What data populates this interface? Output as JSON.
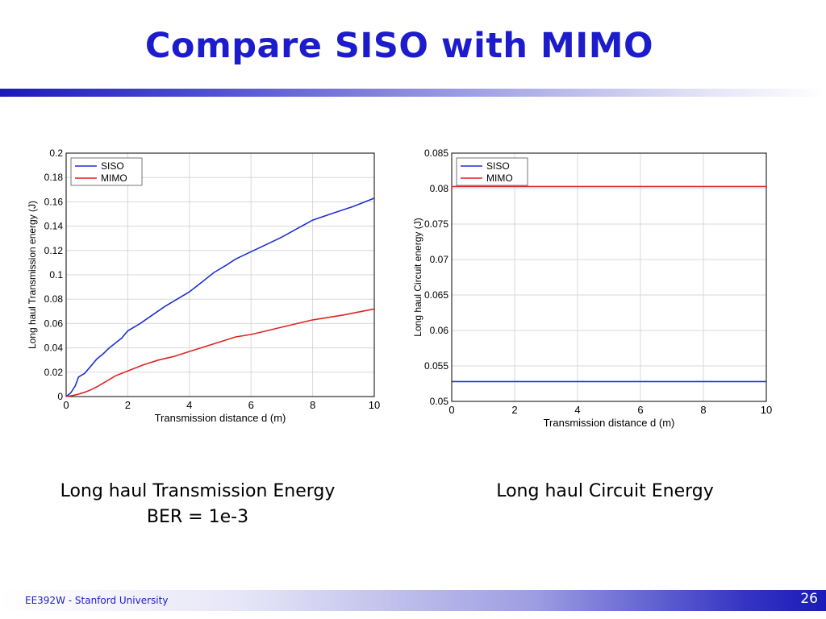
{
  "slide": {
    "title": "Compare SISO with MIMO",
    "footer": "EE392W - Stanford University",
    "page_number": "26",
    "accent_color": "#1c1ccc"
  },
  "captions": {
    "left_line1": "Long haul Transmission Energy",
    "left_line2": "BER = 1e-3",
    "right": "Long haul Circuit Energy"
  },
  "chart_data": [
    {
      "type": "line",
      "title": "",
      "xlabel": "Transmission distance d (m)",
      "ylabel": "Long haul Transmission energy (J)",
      "xlim": [
        0,
        10
      ],
      "ylim": [
        0,
        0.2
      ],
      "xticks": [
        "0",
        "2",
        "4",
        "6",
        "8",
        "10"
      ],
      "yticks": [
        "0",
        "0.02",
        "0.04",
        "0.06",
        "0.08",
        "0.1",
        "0.12",
        "0.14",
        "0.16",
        "0.18",
        "0.2"
      ],
      "grid": true,
      "legend": "top-left",
      "series": [
        {
          "name": "SISO",
          "color": "#1f2fcf",
          "x": [
            0,
            0.15,
            0.3,
            0.4,
            0.6,
            0.8,
            1.0,
            1.2,
            1.4,
            1.6,
            1.8,
            2.0,
            2.4,
            2.8,
            3.2,
            3.6,
            4.0,
            4.4,
            4.8,
            5.2,
            5.5,
            6.0,
            6.5,
            7.0,
            7.5,
            8.0,
            8.7,
            9.3,
            10.0
          ],
          "y": [
            0,
            0.003,
            0.009,
            0.016,
            0.019,
            0.025,
            0.031,
            0.035,
            0.04,
            0.044,
            0.048,
            0.054,
            0.06,
            0.067,
            0.074,
            0.08,
            0.086,
            0.094,
            0.102,
            0.108,
            0.113,
            0.119,
            0.125,
            0.131,
            0.138,
            0.145,
            0.151,
            0.156,
            0.163
          ]
        },
        {
          "name": "MIMO",
          "color": "#e02424",
          "x": [
            0,
            0.2,
            0.4,
            0.6,
            0.8,
            1.0,
            1.2,
            1.4,
            1.6,
            1.8,
            2.0,
            2.5,
            3.0,
            3.5,
            4.0,
            4.5,
            5.0,
            5.5,
            6.0,
            6.5,
            7.0,
            7.5,
            8.0,
            9.0,
            10.0
          ],
          "y": [
            0,
            0.0008,
            0.002,
            0.0035,
            0.0055,
            0.008,
            0.011,
            0.014,
            0.017,
            0.019,
            0.021,
            0.026,
            0.03,
            0.033,
            0.037,
            0.041,
            0.045,
            0.049,
            0.051,
            0.054,
            0.057,
            0.06,
            0.063,
            0.067,
            0.072
          ]
        }
      ]
    },
    {
      "type": "line",
      "title": "",
      "xlabel": "Transmission distance d (m)",
      "ylabel": "Long haul Circuit energy (J)",
      "xlim": [
        0,
        10
      ],
      "ylim": [
        0.05,
        0.085
      ],
      "xticks": [
        "0",
        "2",
        "4",
        "6",
        "8",
        "10"
      ],
      "yticks": [
        "0.05",
        "0.055",
        "0.06",
        "0.065",
        "0.07",
        "0.075",
        "0.08",
        "0.085"
      ],
      "grid": true,
      "legend": "top-left",
      "series": [
        {
          "name": "SISO",
          "color": "#1f2fcf",
          "x": [
            0,
            10
          ],
          "y": [
            0.0528,
            0.0528
          ]
        },
        {
          "name": "MIMO",
          "color": "#e02424",
          "x": [
            0,
            10
          ],
          "y": [
            0.0803,
            0.0803
          ]
        }
      ]
    }
  ]
}
